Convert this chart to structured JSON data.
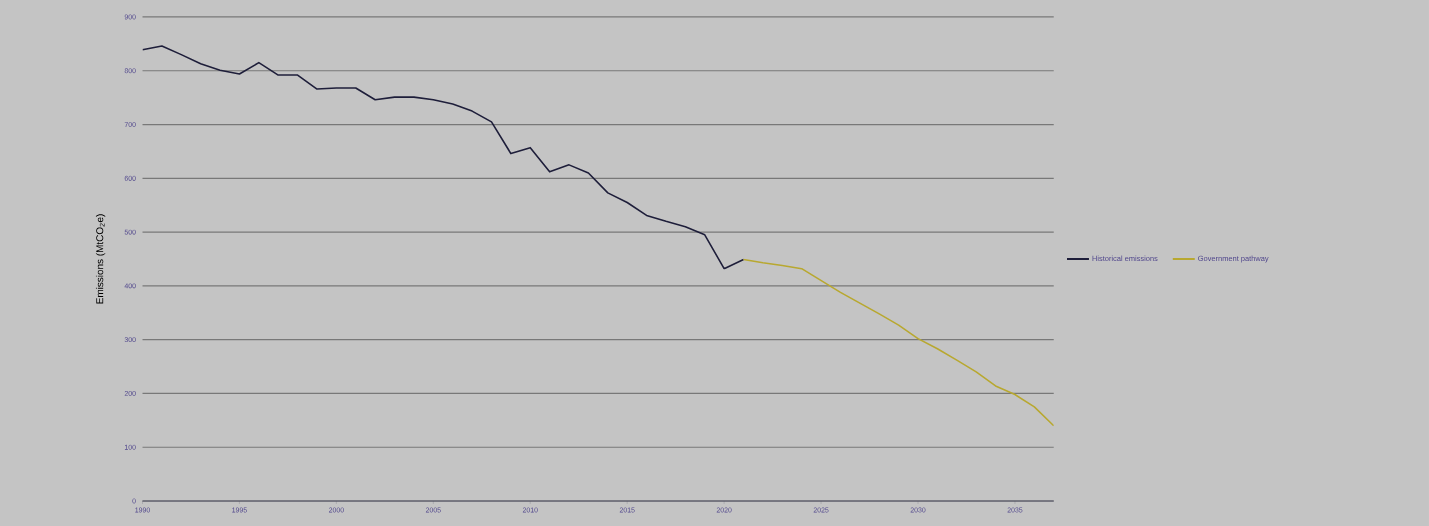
{
  "chart_data": {
    "type": "line",
    "ylabel": "Emissions (MtCO$_{2}$e)",
    "x": [
      1990,
      1991,
      1992,
      1993,
      1994,
      1995,
      1996,
      1997,
      1998,
      1999,
      2000,
      2001,
      2002,
      2003,
      2004,
      2005,
      2006,
      2007,
      2008,
      2009,
      2010,
      2011,
      2012,
      2013,
      2014,
      2015,
      2016,
      2017,
      2018,
      2019,
      2020,
      2021
    ],
    "series": [
      {
        "name": "Historical emissions",
        "color": "#1e1e3a",
        "values": [
          839,
          846,
          830,
          813,
          801,
          794,
          815,
          792,
          792,
          766,
          768,
          768,
          746,
          751,
          751,
          746,
          738,
          725,
          705,
          646,
          657,
          612,
          625,
          610,
          573,
          555,
          531,
          520,
          510,
          495,
          432,
          449
        ]
      },
      {
        "name": "Government pathway",
        "color": "#b8a830",
        "x": [
          2021,
          2022,
          2023,
          2024,
          2025,
          2026,
          2027,
          2028,
          2029,
          2030,
          2031,
          2032,
          2033,
          2034,
          2035,
          2036,
          2037
        ],
        "values": [
          449,
          443,
          438,
          432,
          410,
          388,
          368,
          348,
          327,
          302,
          283,
          262,
          240,
          214,
          198,
          175,
          140
        ]
      }
    ],
    "xlim": [
      1990,
      2037
    ],
    "xticks": [
      1990,
      1995,
      2000,
      2005,
      2010,
      2015,
      2020,
      2025,
      2030,
      2035
    ],
    "ylim": [
      0,
      900
    ],
    "yticks": [
      0,
      100,
      200,
      300,
      400,
      500,
      600,
      700,
      800,
      900
    ],
    "grid": "y",
    "legend": "right",
    "marker": "none",
    "line_style": "solid"
  }
}
